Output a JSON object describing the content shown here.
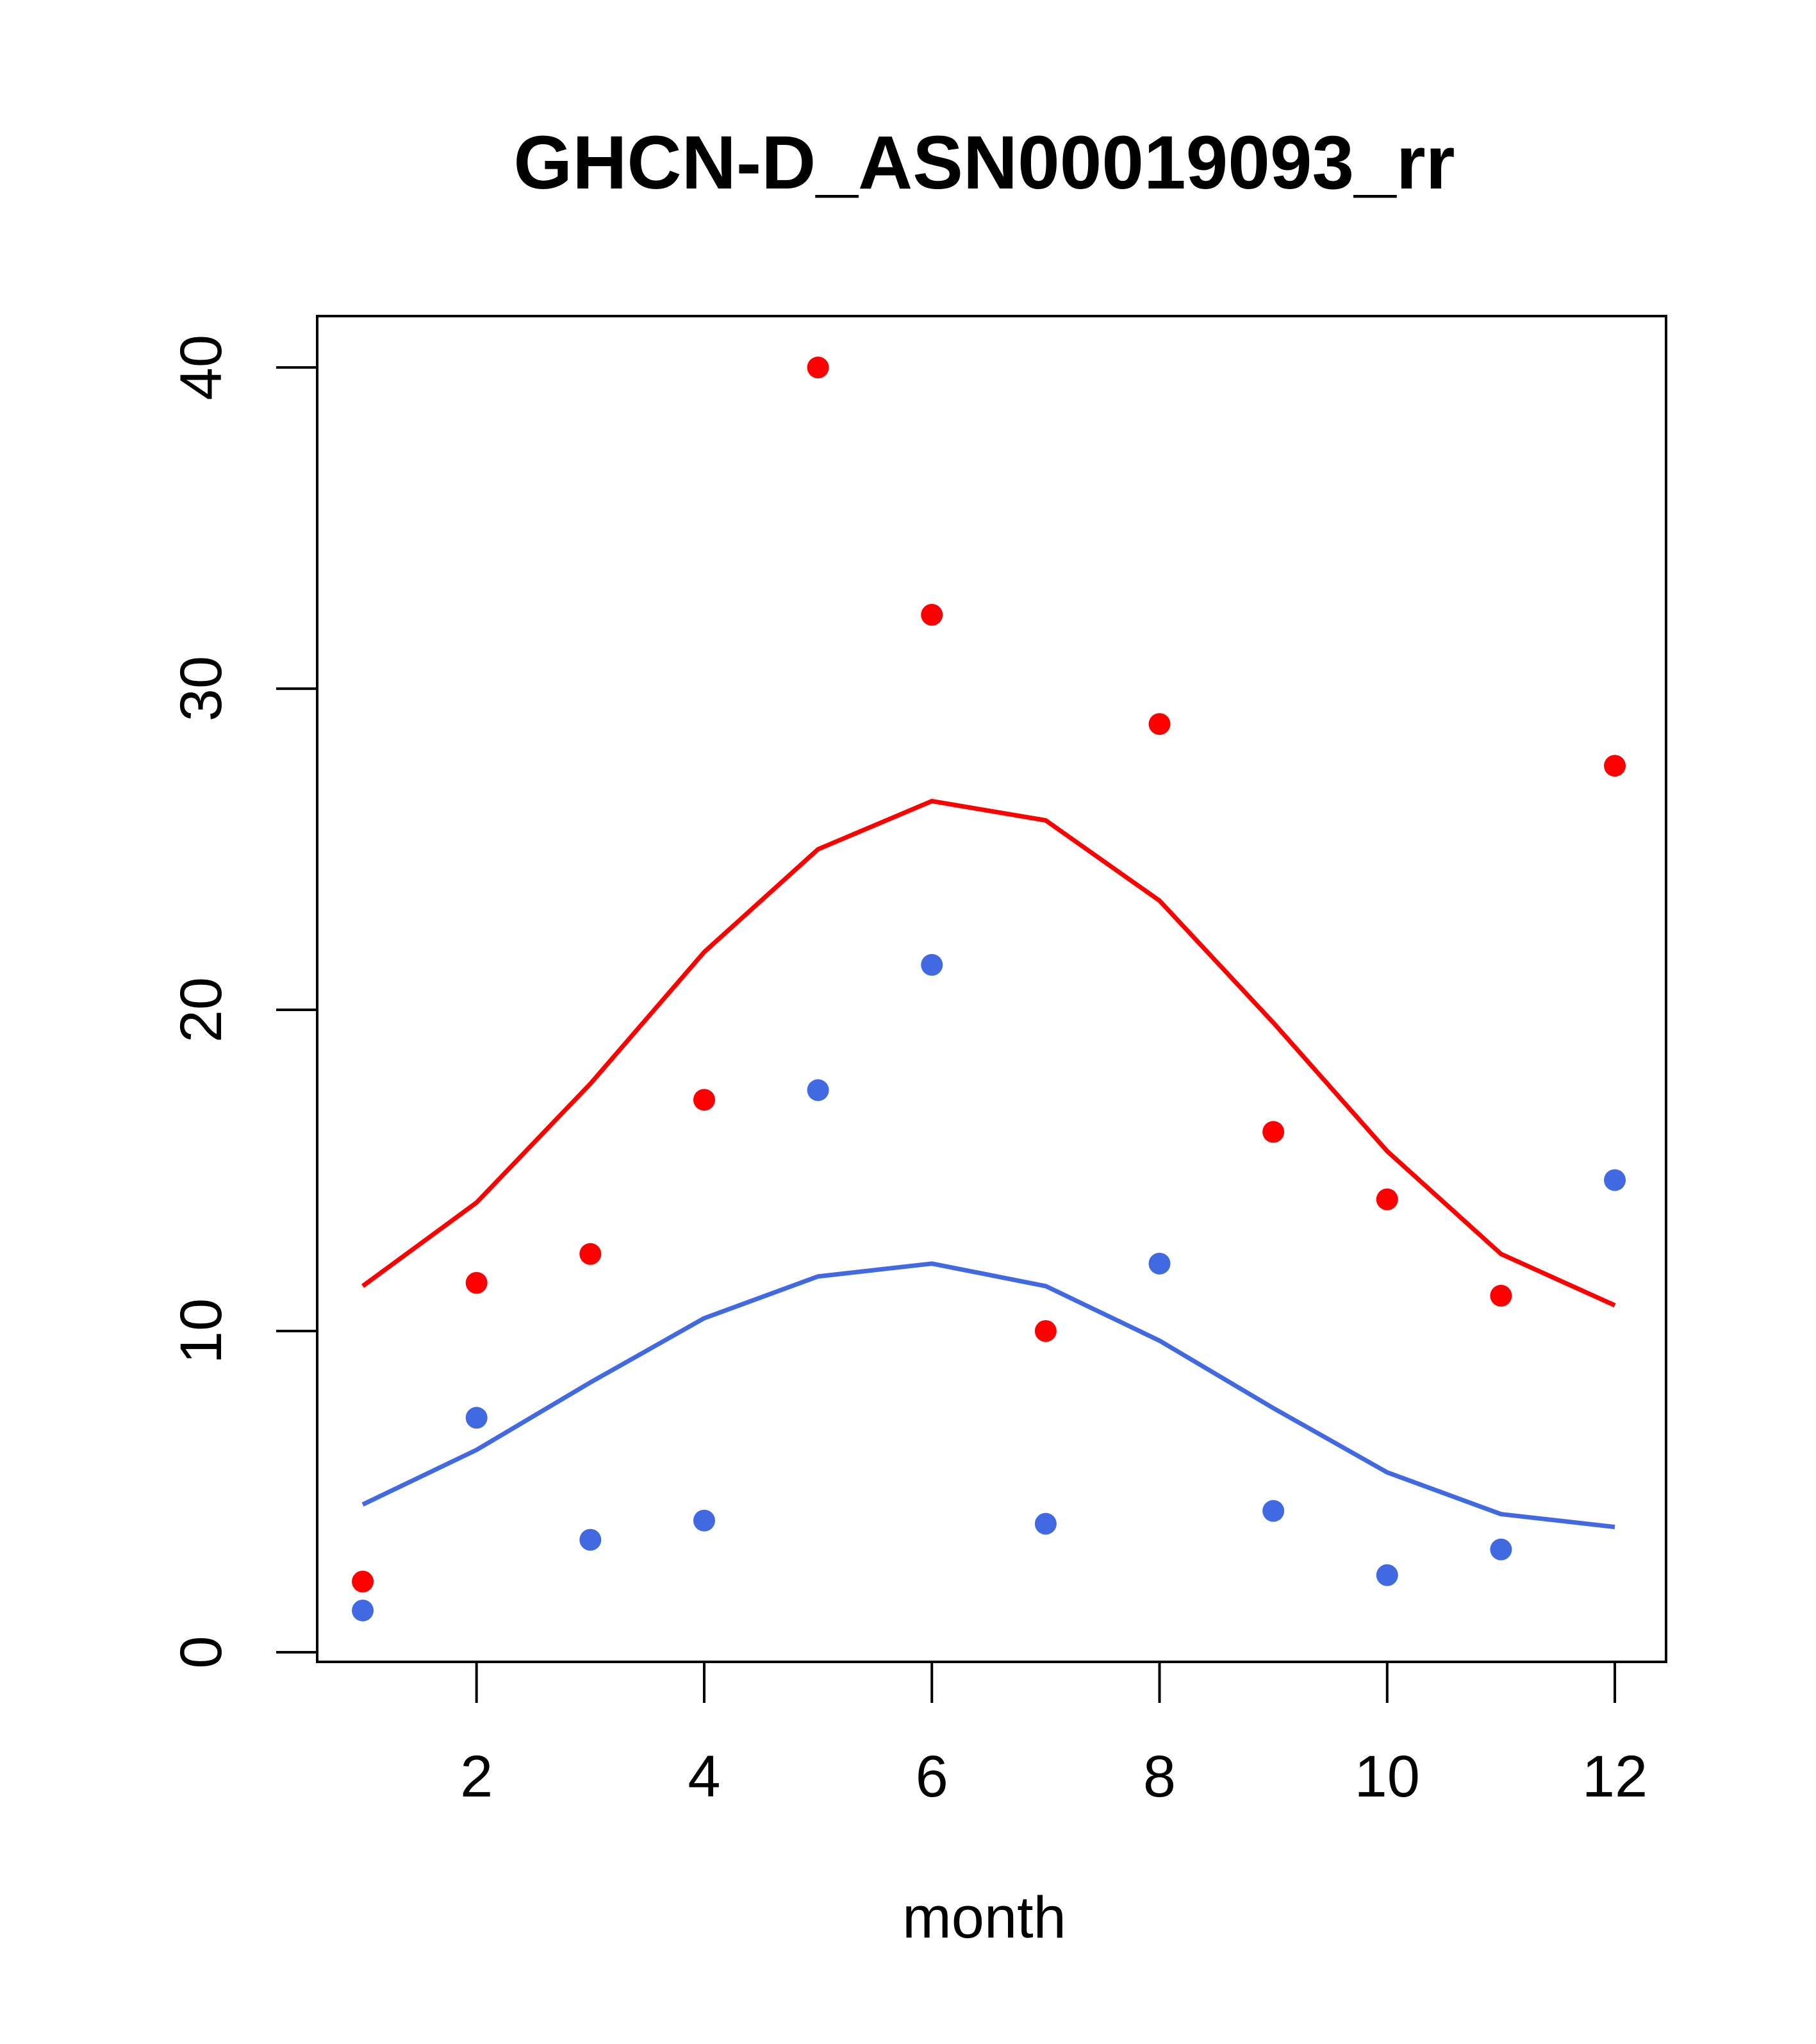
{
  "chart_data": {
    "type": "scatter",
    "title": "GHCN-D_ASN00019093_rr",
    "xlabel": "month",
    "ylabel": "",
    "xlim": [
      0.6,
      12.45
    ],
    "ylim": [
      -0.3,
      41.6
    ],
    "x_ticks": [
      2,
      4,
      6,
      8,
      10,
      12
    ],
    "y_ticks": [
      0,
      10,
      20,
      30,
      40
    ],
    "grid": false,
    "colors": {
      "red": "#ff0000",
      "blue": "#4169e1",
      "axis": "#000000"
    },
    "series": [
      {
        "kind": "points",
        "color": "#ff0000",
        "x": [
          1,
          2,
          3,
          4,
          5,
          6,
          7,
          8,
          9,
          10,
          11,
          12
        ],
        "y": [
          2.2,
          11.5,
          12.4,
          17.2,
          40.0,
          32.3,
          10.0,
          28.9,
          16.2,
          14.1,
          11.1,
          27.6
        ]
      },
      {
        "kind": "points",
        "color": "#4169e1",
        "x": [
          1,
          2,
          3,
          4,
          5,
          6,
          7,
          8,
          9,
          10,
          11,
          12
        ],
        "y": [
          1.3,
          7.3,
          3.5,
          4.1,
          17.5,
          21.4,
          4.0,
          12.1,
          4.4,
          2.4,
          3.2,
          14.7
        ]
      },
      {
        "kind": "line",
        "color": "#ff0000",
        "x": [
          1,
          2,
          3,
          4,
          5,
          6,
          7,
          8,
          9,
          10,
          11,
          12
        ],
        "y": [
          11.4,
          14.0,
          17.7,
          21.8,
          25.0,
          26.5,
          25.9,
          23.4,
          19.6,
          15.6,
          12.4,
          10.8
        ]
      },
      {
        "kind": "line",
        "color": "#4169e1",
        "x": [
          1,
          2,
          3,
          4,
          5,
          6,
          7,
          8,
          9,
          10,
          11,
          12
        ],
        "y": [
          4.6,
          6.3,
          8.4,
          10.4,
          11.7,
          12.1,
          11.4,
          9.7,
          7.6,
          5.6,
          4.3,
          3.9
        ]
      }
    ]
  }
}
